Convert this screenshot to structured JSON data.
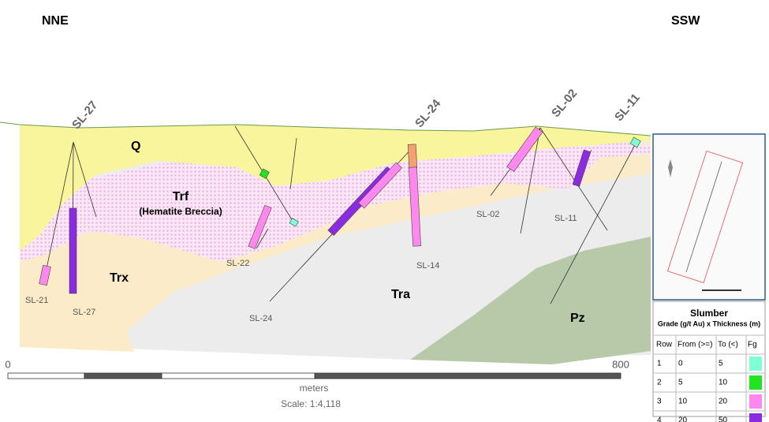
{
  "header": {
    "left": "NNE",
    "right": "SSW"
  },
  "units": {
    "q": "Q",
    "trf": "Trf",
    "trf_note": "(Hematite Breccia)",
    "trx": "Trx",
    "tra": "Tra",
    "pz": "Pz"
  },
  "collar_labels": [
    "SL-27",
    "SL-24",
    "SL-02",
    "SL-11"
  ],
  "hole_labels": [
    "SL-21",
    "SL-27",
    "SL-22",
    "SL-24",
    "SL-14",
    "SL-02",
    "SL-11"
  ],
  "scale_bar": {
    "start": "0",
    "end": "800",
    "unit": "meters",
    "scale": "Scale: 1:4,118"
  },
  "legend": {
    "title": "Slumber",
    "subtitle": "Grade (g/t Au) x Thickness (m)",
    "columns": [
      "Row",
      "From (>=)",
      "To (<)",
      "Fg"
    ],
    "rows": [
      {
        "row": "1",
        "from": "0",
        "to": "5",
        "color": "#7fffd4"
      },
      {
        "row": "2",
        "from": "5",
        "to": "10",
        "color": "#22e522"
      },
      {
        "row": "3",
        "from": "10",
        "to": "20",
        "color": "#ff88ee"
      },
      {
        "row": "4",
        "from": "20",
        "to": "50",
        "color": "#8a2be2"
      }
    ]
  }
}
